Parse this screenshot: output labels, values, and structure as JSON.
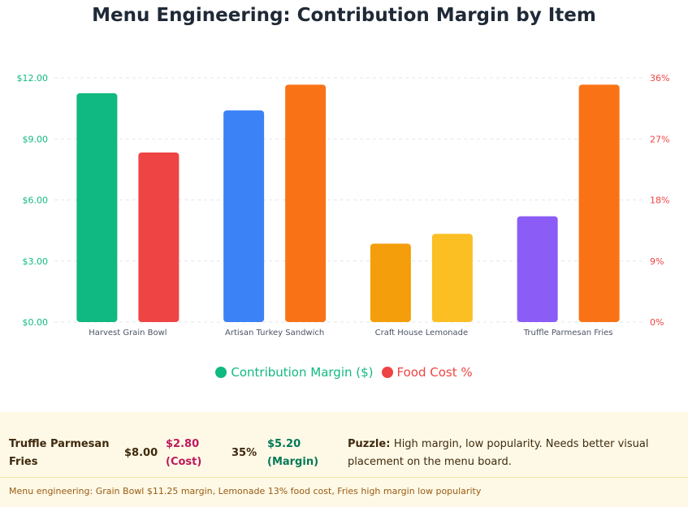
{
  "chart_data": {
    "type": "bar",
    "title": "Menu Engineering: Contribution Margin by Item",
    "categories": [
      "Harvest Grain Bowl",
      "Artisan Turkey Sandwich",
      "Craft House Lemonade",
      "Truffle Parmesan Fries"
    ],
    "series": [
      {
        "name": "Contribution Margin ($)",
        "axis": "left",
        "values": [
          11.25,
          10.4,
          3.85,
          5.2
        ],
        "colors": [
          "#10b981",
          "#3b82f6",
          "#f59e0b",
          "#8b5cf6"
        ]
      },
      {
        "name": "Food Cost %",
        "axis": "right",
        "values": [
          25,
          35,
          13,
          35
        ],
        "colors": [
          "#ef4444",
          "#f97316",
          "#fbbf24",
          "#f97316"
        ]
      }
    ],
    "y_left": {
      "ylim": [
        0,
        12
      ],
      "ticks": [
        "$0.00",
        "$3.00",
        "$6.00",
        "$9.00",
        "$12.00"
      ],
      "color": "#10b981"
    },
    "y_right": {
      "ylim": [
        0,
        36
      ],
      "ticks": [
        "0%",
        "9%",
        "18%",
        "27%",
        "36%"
      ],
      "color": "#ef4444"
    },
    "grid": true,
    "legend_position": "bottom"
  },
  "legend": {
    "margin_label": "Contribution Margin ($)",
    "margin_color": "#10b981",
    "cost_label": "Food Cost %",
    "cost_color": "#ef4444"
  },
  "detail": {
    "item": "Truffle Parmesan Fries",
    "price": "$8.00",
    "cost": "$2.80 (Cost)",
    "cost_pct": "35%",
    "margin": "$5.20 (Margin)",
    "note_label": "Puzzle:",
    "note_text": "High margin, low popularity. Needs better visual placement on the menu board."
  },
  "footer": "Menu engineering: Grain Bowl $11.25 margin, Lemonade 13% food cost, Fries high margin low popularity"
}
